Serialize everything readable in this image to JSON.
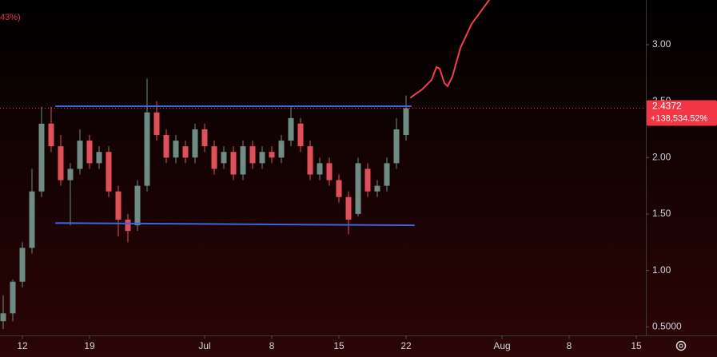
{
  "chart_data": {
    "type": "candlestick",
    "header_fragment": "43%)",
    "xlim": [
      9.667,
      77
    ],
    "ylim": [
      0.424,
      3.396
    ],
    "xticks": [
      {
        "value": 12,
        "label": "12"
      },
      {
        "value": 19,
        "label": "19"
      },
      {
        "value": 31,
        "label": "Jul"
      },
      {
        "value": 38,
        "label": "8"
      },
      {
        "value": 45,
        "label": "15"
      },
      {
        "value": 52,
        "label": "22"
      },
      {
        "value": 62,
        "label": "Aug"
      },
      {
        "value": 69,
        "label": "8"
      },
      {
        "value": 76,
        "label": "15"
      }
    ],
    "yticks": [
      {
        "value": 0.5,
        "label": "0.5000"
      },
      {
        "value": 1,
        "label": "1.00"
      },
      {
        "value": 1.5,
        "label": "1.50"
      },
      {
        "value": 2,
        "label": "2.00"
      },
      {
        "value": 2.5,
        "label": "2.50"
      },
      {
        "value": 3,
        "label": "3.00"
      }
    ],
    "up_color": "#6e8c84",
    "down_color": "#e0505a",
    "x": [
      10,
      11,
      12,
      13,
      14,
      15,
      16,
      17,
      18,
      19,
      20,
      21,
      22,
      23,
      24,
      25,
      26,
      27,
      28,
      29,
      30,
      31,
      32,
      33,
      34,
      35,
      36,
      37,
      38,
      39,
      40,
      41,
      42,
      43,
      44,
      45,
      46,
      47,
      48,
      49,
      50,
      51,
      52
    ],
    "open": [
      0.55,
      0.62,
      0.9,
      1.2,
      1.7,
      2.3,
      2.1,
      1.8,
      1.9,
      2.15,
      1.95,
      2.05,
      1.7,
      1.45,
      1.4,
      1.75,
      2.4,
      2.2,
      2.0,
      2.1,
      2.0,
      2.25,
      2.1,
      1.95,
      2.05,
      1.85,
      2.1,
      1.95,
      2.05,
      2.0,
      2.15,
      2.3,
      2.1,
      1.85,
      1.95,
      1.8,
      1.65,
      1.5,
      1.9,
      1.7,
      1.75,
      1.95,
      2.2
    ],
    "high": [
      0.78,
      0.92,
      1.25,
      1.9,
      2.45,
      2.45,
      2.2,
      1.95,
      2.25,
      2.2,
      2.1,
      2.1,
      1.75,
      1.5,
      1.8,
      2.7,
      2.5,
      2.25,
      2.2,
      2.15,
      2.3,
      2.3,
      2.15,
      2.1,
      2.1,
      2.15,
      2.15,
      2.1,
      2.1,
      2.2,
      2.45,
      2.35,
      2.15,
      2.0,
      2.0,
      1.85,
      1.7,
      2.0,
      1.95,
      1.8,
      2.0,
      2.35,
      2.55
    ],
    "low": [
      0.48,
      0.55,
      0.85,
      1.15,
      1.65,
      2.05,
      1.75,
      1.4,
      1.85,
      1.9,
      1.9,
      1.65,
      1.3,
      1.25,
      1.35,
      1.7,
      2.15,
      1.95,
      1.95,
      1.95,
      1.95,
      2.05,
      1.85,
      1.9,
      1.8,
      1.8,
      1.9,
      1.9,
      1.95,
      1.95,
      2.1,
      2.05,
      1.8,
      1.8,
      1.75,
      1.6,
      1.32,
      1.48,
      1.65,
      1.65,
      1.7,
      1.9,
      2.15
    ],
    "close": [
      0.62,
      0.9,
      1.2,
      1.7,
      2.3,
      2.1,
      1.8,
      1.9,
      2.15,
      1.95,
      2.05,
      1.7,
      1.45,
      1.35,
      1.75,
      2.4,
      2.2,
      2.0,
      2.15,
      2.0,
      2.25,
      2.1,
      1.9,
      2.05,
      1.85,
      2.1,
      1.95,
      2.05,
      2.0,
      2.15,
      2.35,
      2.1,
      1.85,
      1.95,
      1.8,
      1.65,
      1.45,
      1.95,
      1.7,
      1.75,
      1.95,
      2.25,
      2.4372
    ],
    "trendlines": [
      {
        "color": "#3d63e6",
        "x": [
          15.5,
          52.5
        ],
        "values": [
          2.455,
          2.455
        ]
      },
      {
        "color": "#3d63e6",
        "x": [
          15.5,
          52.83
        ],
        "values": [
          1.42,
          1.4
        ]
      },
      {
        "color": "#f0404e",
        "x": [
          52.5,
          53.67,
          54.67,
          55.17,
          55.5,
          56.0,
          56.33,
          56.83,
          57.67,
          58.83,
          60.67
        ],
        "values": [
          2.533,
          2.604,
          2.689,
          2.802,
          2.788,
          2.66,
          2.632,
          2.717,
          2.972,
          3.184,
          3.396
        ]
      }
    ],
    "last_price": 2.4372,
    "last_color": "#f23645",
    "change_label": "+138,534.52%"
  }
}
